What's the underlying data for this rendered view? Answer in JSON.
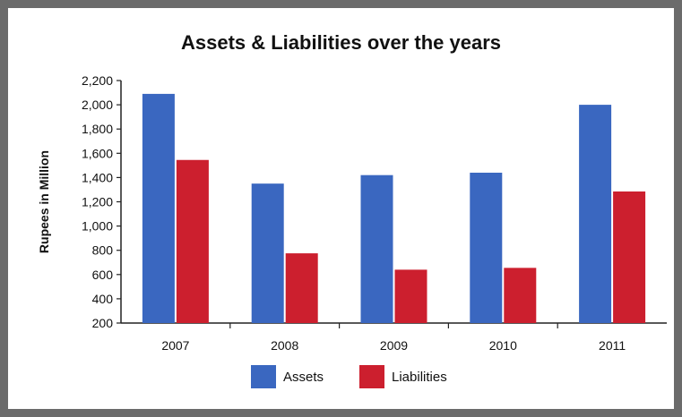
{
  "chart_data": {
    "type": "bar",
    "title": "Assets & Liabilities over the years",
    "xlabel": "",
    "ylabel": "Rupees in Million",
    "categories": [
      "2007",
      "2008",
      "2009",
      "2010",
      "2011"
    ],
    "series": [
      {
        "name": "Assets",
        "values": [
          2090,
          1350,
          1420,
          1440,
          2000
        ],
        "color": "#3a67c0"
      },
      {
        "name": "Liabilities",
        "values": [
          1545,
          775,
          640,
          655,
          1285
        ],
        "color": "#cc1f2e"
      }
    ],
    "ylim": [
      200,
      2200
    ],
    "yticks": [
      "200",
      "400",
      "600",
      "800",
      "1,000",
      "1,200",
      "1,400",
      "1,600",
      "1,800",
      "2,000",
      "2,200"
    ],
    "grid": false,
    "legend": "bottom"
  }
}
